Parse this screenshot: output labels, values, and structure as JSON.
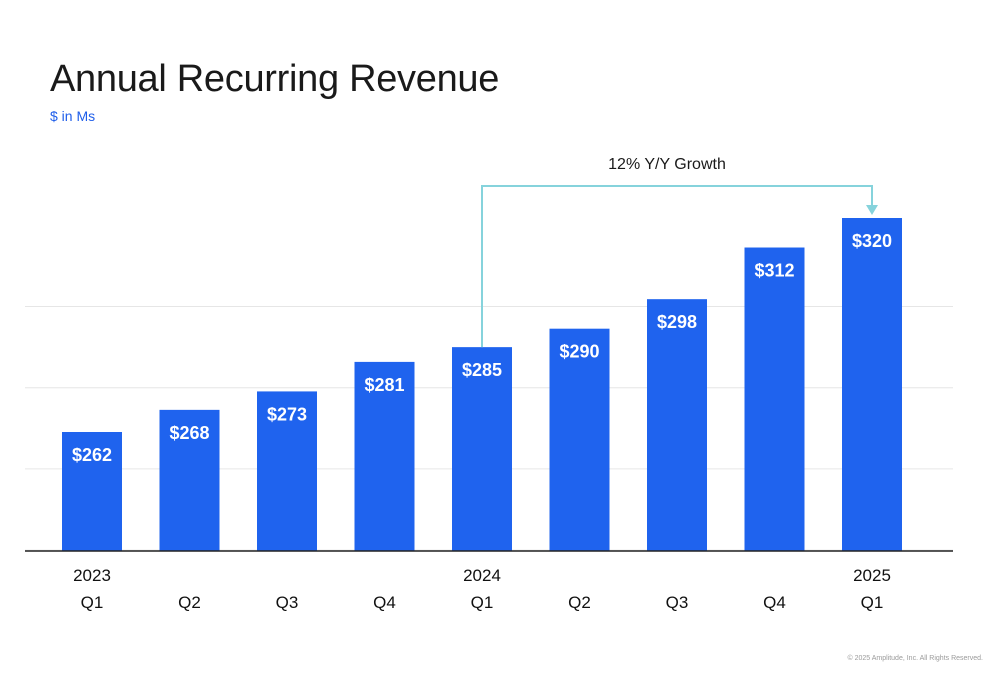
{
  "chart_data": {
    "type": "bar",
    "title": "Annual Recurring Revenue",
    "subtitle": "$ in Ms",
    "categories": [
      "Q1",
      "Q2",
      "Q3",
      "Q4",
      "Q1",
      "Q2",
      "Q3",
      "Q4",
      "Q1"
    ],
    "year_labels": [
      "2023",
      "",
      "",
      "",
      "2024",
      "",
      "",
      "",
      "2025"
    ],
    "values": [
      262,
      268,
      273,
      281,
      285,
      290,
      298,
      312,
      320
    ],
    "value_labels": [
      "$262",
      "$268",
      "$273",
      "$281",
      "$285",
      "$290",
      "$298",
      "$312",
      "$320"
    ],
    "ylim": [
      200,
      325
    ],
    "grid": true,
    "annotation": {
      "text": "12% Y/Y Growth",
      "from_index": 4,
      "to_index": 8
    },
    "colors": {
      "bar": "#1f63ee",
      "gridline": "#e6e6e6",
      "axis": "#222222",
      "annotation": "#86d3dc"
    }
  },
  "footer": "© 2025 Amplitude, Inc. All Rights Reserved."
}
